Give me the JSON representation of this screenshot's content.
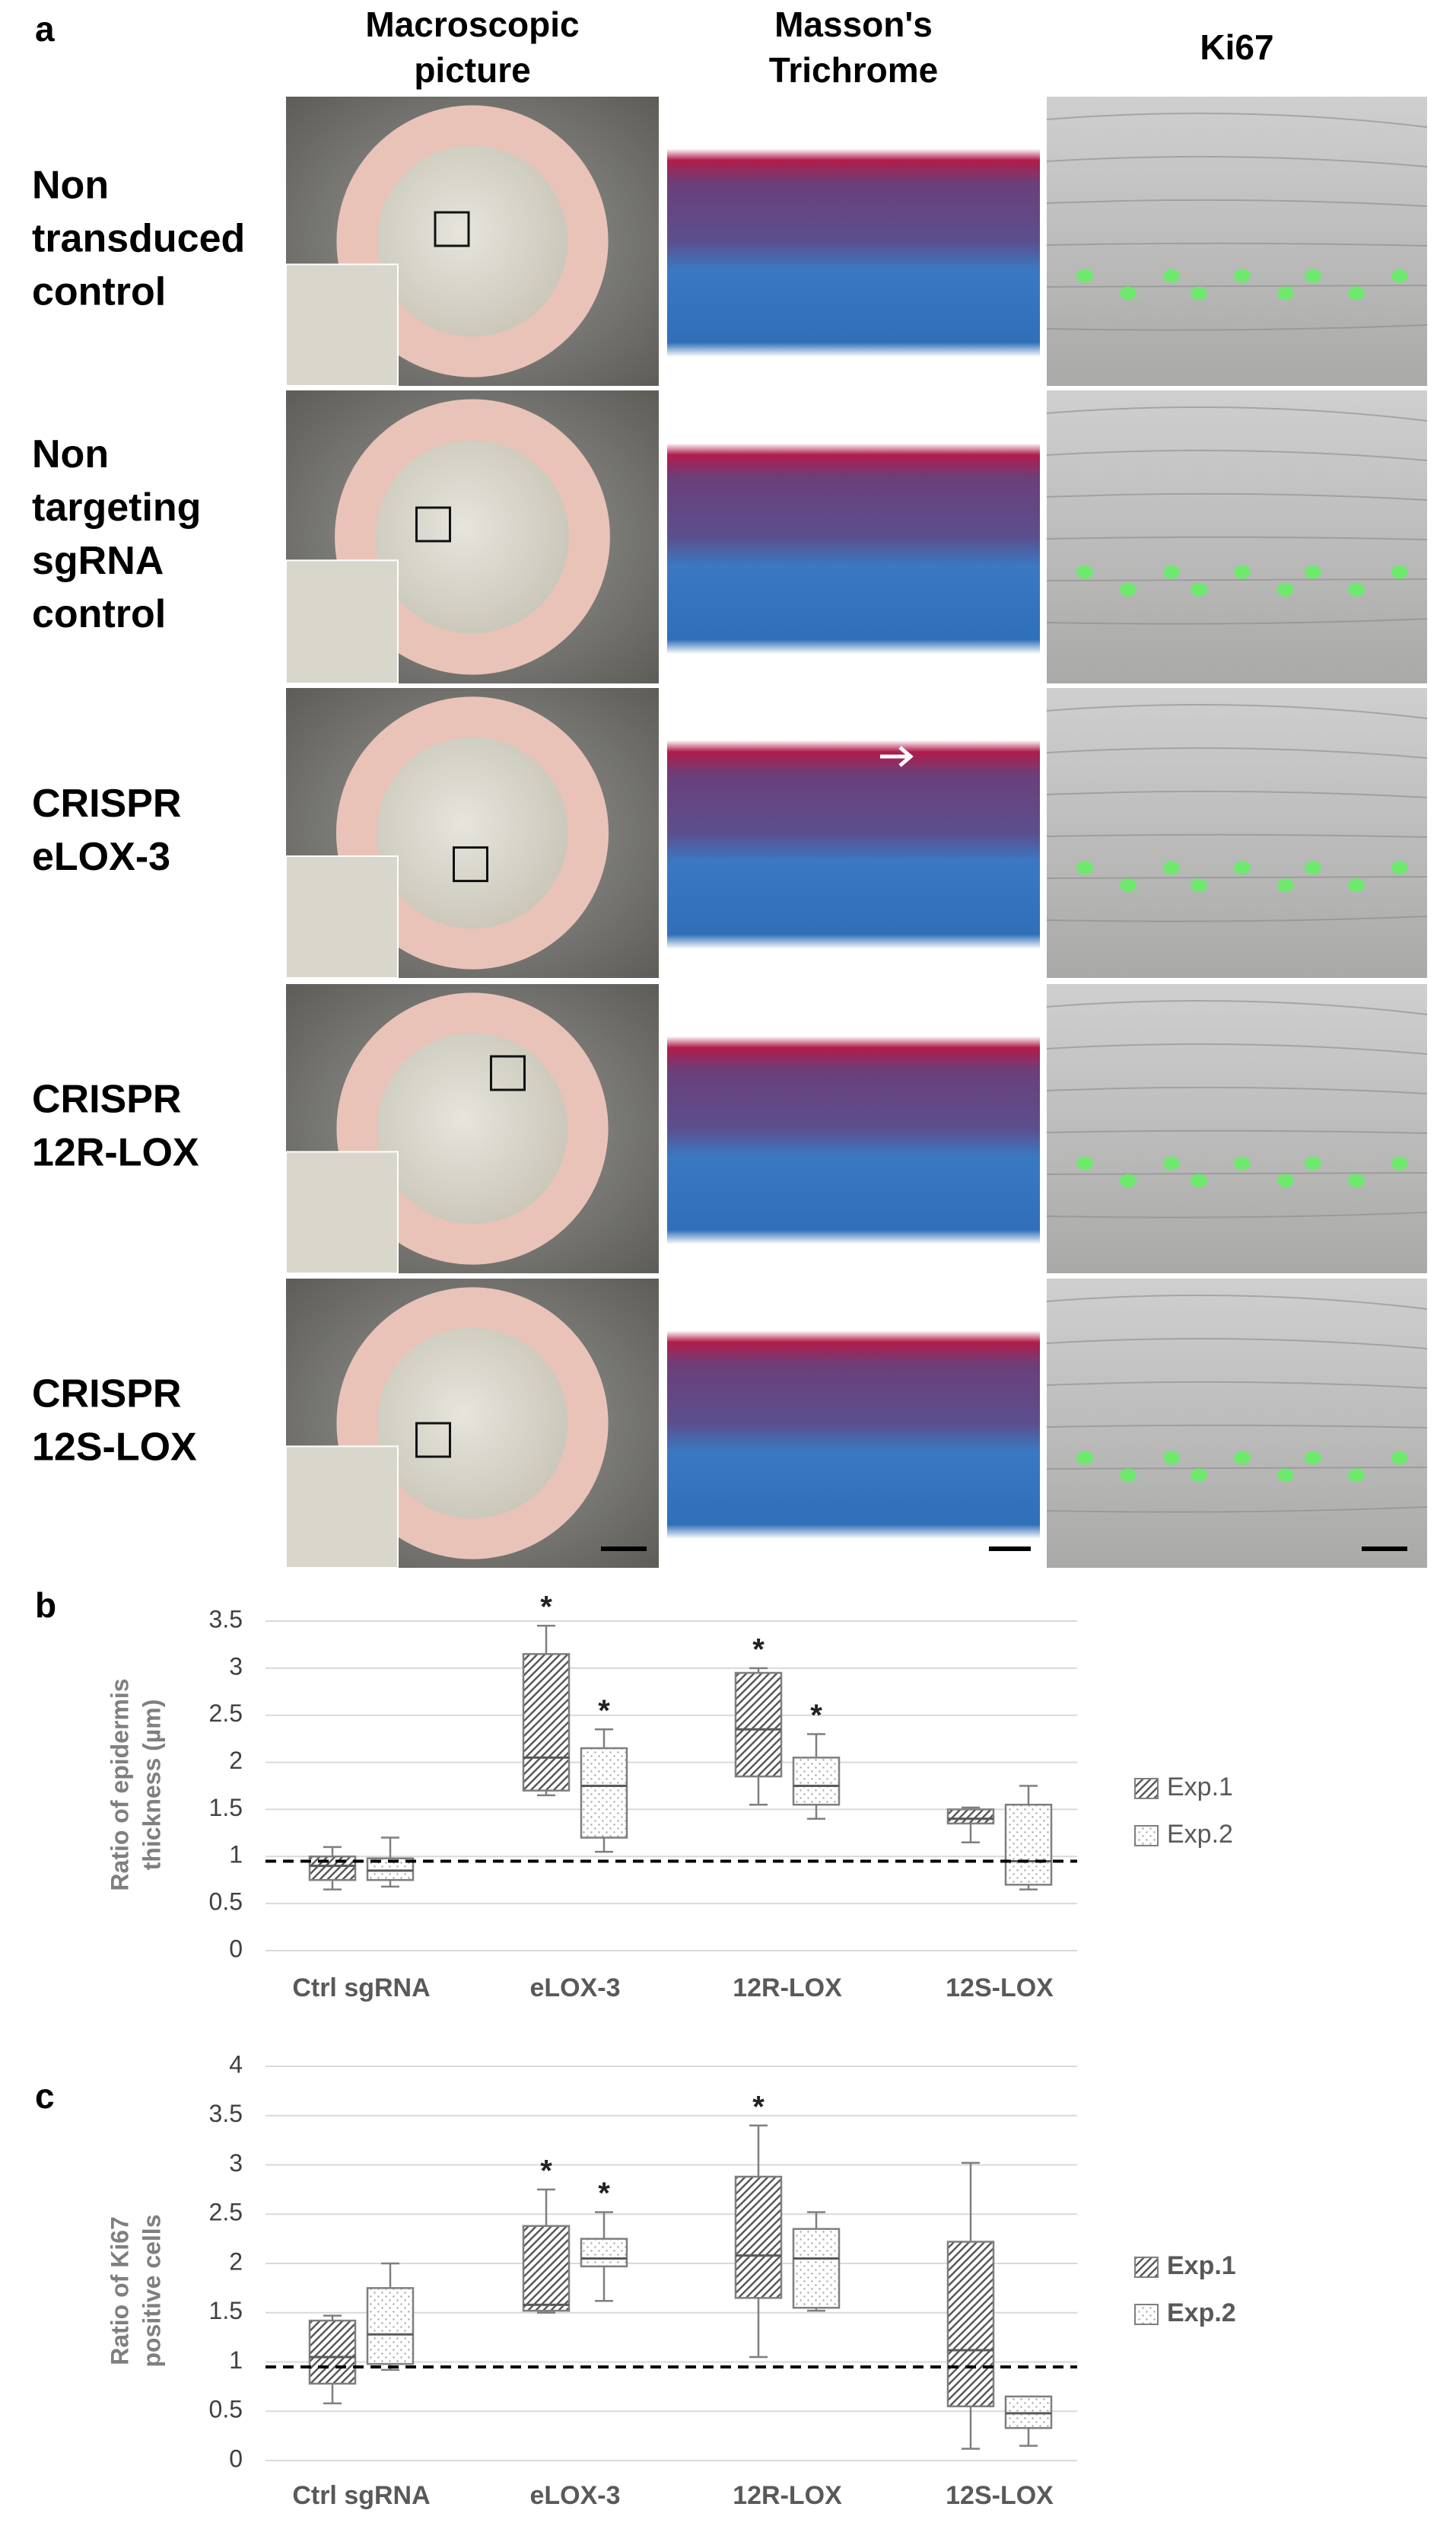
{
  "panel_a": {
    "label": "a",
    "column_headers": [
      [
        "Macroscopic",
        "picture"
      ],
      [
        "Masson's",
        "Trichrome"
      ],
      [
        "Ki67"
      ]
    ],
    "row_labels": [
      [
        "Non",
        "transduced",
        "control"
      ],
      [
        "Non",
        "targeting",
        "sgRNA",
        "control"
      ],
      [
        "CRISPR",
        "eLOX-3"
      ],
      [
        "CRISPR",
        "12R-LOX"
      ],
      [
        "CRISPR",
        "12S-LOX"
      ]
    ]
  },
  "chart_data": [
    {
      "panel_label": "b",
      "type": "box",
      "ylabel": [
        "Ratio of epidermis",
        "thickness (µm)"
      ],
      "categories": [
        "Ctrl sgRNA",
        "eLOX-3",
        "12R-LOX",
        "12S-LOX"
      ],
      "series": [
        {
          "name": "Exp.1",
          "color": "#595959",
          "pattern": "diagonal",
          "values": [
            [
              0.65,
              0.75,
              0.9,
              1.0,
              1.1
            ],
            [
              1.65,
              1.7,
              2.05,
              3.15,
              3.45
            ],
            [
              1.55,
              1.85,
              2.35,
              2.95,
              3.0
            ],
            [
              1.15,
              1.35,
              1.4,
              1.5,
              1.52
            ]
          ],
          "significance": [
            null,
            "*",
            "*",
            null
          ]
        },
        {
          "name": "Exp.2",
          "color": "#a6a6a6",
          "pattern": "dotted",
          "values": [
            [
              0.68,
              0.75,
              0.85,
              0.98,
              1.2
            ],
            [
              1.05,
              1.2,
              1.75,
              2.15,
              2.35
            ],
            [
              1.4,
              1.55,
              1.75,
              2.05,
              2.3
            ],
            [
              0.65,
              0.7,
              0.95,
              1.55,
              1.75
            ]
          ],
          "significance": [
            null,
            "*",
            "*",
            null
          ]
        }
      ],
      "ylim": [
        0,
        3.5
      ],
      "yticks": [
        0,
        0.5,
        1,
        1.5,
        2,
        2.5,
        3,
        3.5
      ],
      "grid": true,
      "reference_line": 0.95,
      "legend": "right"
    },
    {
      "panel_label": "c",
      "type": "box",
      "ylabel": [
        "Ratio of Ki67",
        "positive cells"
      ],
      "categories": [
        "Ctrl sgRNA",
        "eLOX-3",
        "12R-LOX",
        "12S-LOX"
      ],
      "series": [
        {
          "name": "Exp.1",
          "color": "#595959",
          "pattern": "diagonal",
          "values": [
            [
              0.58,
              0.78,
              1.05,
              1.42,
              1.47
            ],
            [
              1.5,
              1.52,
              1.58,
              2.38,
              2.75
            ],
            [
              1.05,
              1.65,
              2.08,
              2.88,
              3.4
            ],
            [
              0.12,
              0.55,
              1.12,
              2.22,
              3.02
            ]
          ],
          "significance": [
            null,
            "*",
            "*",
            null
          ]
        },
        {
          "name": "Exp.2",
          "color": "#a6a6a6",
          "pattern": "dotted",
          "values": [
            [
              0.92,
              0.98,
              1.28,
              1.75,
              2.0
            ],
            [
              1.62,
              1.97,
              2.05,
              2.25,
              2.52
            ],
            [
              1.52,
              1.55,
              2.05,
              2.35,
              2.52
            ],
            [
              0.15,
              0.33,
              0.48,
              0.65,
              0.65
            ]
          ],
          "significance": [
            null,
            "*",
            null,
            null
          ]
        }
      ],
      "ylim": [
        0,
        4
      ],
      "yticks": [
        0,
        0.5,
        1,
        1.5,
        2,
        2.5,
        3,
        3.5,
        4
      ],
      "grid": true,
      "reference_line": 0.95,
      "legend": "right"
    }
  ]
}
